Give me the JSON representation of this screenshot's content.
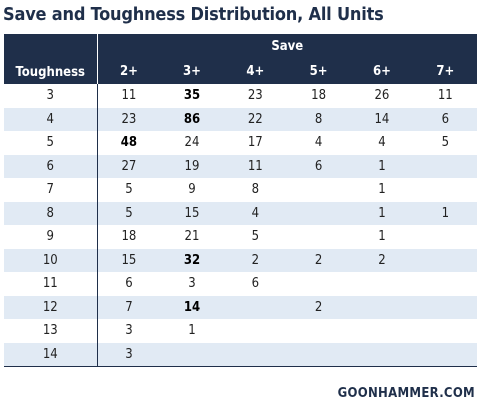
{
  "title": "Save and Toughness Distribution, All Units",
  "brand": "GOONHAMMER.COM",
  "chart_data": {
    "type": "table",
    "column_group_label": "Save",
    "row_header_label": "Toughness",
    "columns": [
      "2+",
      "3+",
      "4+",
      "5+",
      "6+",
      "7+"
    ],
    "rows": [
      {
        "toughness": "3",
        "values": [
          "11",
          "35",
          "23",
          "18",
          "26",
          "11"
        ],
        "bold": [
          1
        ]
      },
      {
        "toughness": "4",
        "values": [
          "23",
          "86",
          "22",
          "8",
          "14",
          "6"
        ],
        "bold": [
          1
        ]
      },
      {
        "toughness": "5",
        "values": [
          "48",
          "24",
          "17",
          "4",
          "4",
          "5"
        ],
        "bold": [
          0
        ]
      },
      {
        "toughness": "6",
        "values": [
          "27",
          "19",
          "11",
          "6",
          "1",
          ""
        ],
        "bold": []
      },
      {
        "toughness": "7",
        "values": [
          "5",
          "9",
          "8",
          "",
          "1",
          ""
        ],
        "bold": []
      },
      {
        "toughness": "8",
        "values": [
          "5",
          "15",
          "4",
          "",
          "1",
          "1"
        ],
        "bold": []
      },
      {
        "toughness": "9",
        "values": [
          "18",
          "21",
          "5",
          "",
          "1",
          ""
        ],
        "bold": []
      },
      {
        "toughness": "10",
        "values": [
          "15",
          "32",
          "2",
          "2",
          "2",
          ""
        ],
        "bold": [
          1
        ]
      },
      {
        "toughness": "11",
        "values": [
          "6",
          "3",
          "6",
          "",
          "",
          ""
        ],
        "bold": []
      },
      {
        "toughness": "12",
        "values": [
          "7",
          "14",
          "",
          "2",
          "",
          ""
        ],
        "bold": [
          1
        ]
      },
      {
        "toughness": "13",
        "values": [
          "3",
          "1",
          "",
          "",
          "",
          ""
        ],
        "bold": []
      },
      {
        "toughness": "14",
        "values": [
          "3",
          "",
          "",
          "",
          "",
          ""
        ],
        "bold": []
      }
    ]
  }
}
